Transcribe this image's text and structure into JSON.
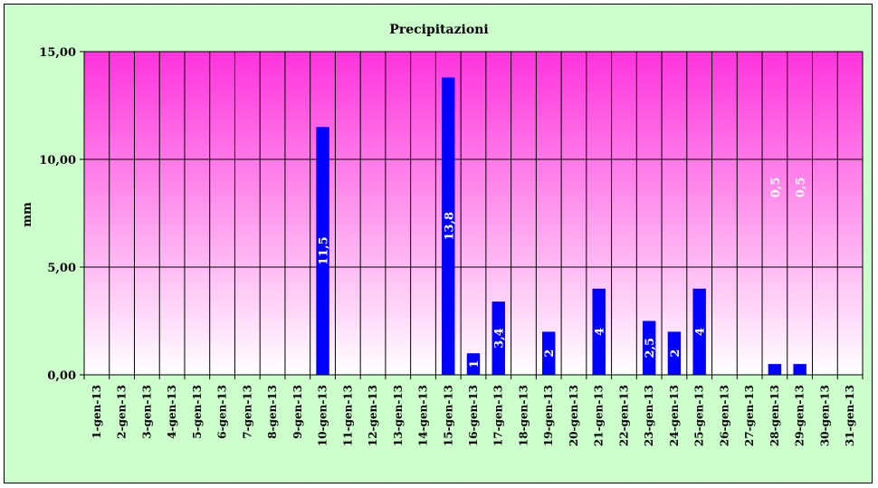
{
  "colors": {
    "background": "#ccffcc",
    "plot_top": "#ff33dd",
    "plot_bottom": "#ffffff",
    "bar": "#0000ff",
    "data_label": "#ffffff",
    "grid": "#000000"
  },
  "chart_data": {
    "type": "bar",
    "title": "Precipitazioni",
    "xlabel": "",
    "ylabel": "mm",
    "ylim": [
      0,
      15
    ],
    "yticks": [
      "0,00",
      "5,00",
      "10,00",
      "15,00"
    ],
    "ytick_values": [
      0,
      5,
      10,
      15
    ],
    "grid": true,
    "legend": "none",
    "categories": [
      "1-gen-13",
      "2-gen-13",
      "3-gen-13",
      "4-gen-13",
      "5-gen-13",
      "6-gen-13",
      "7-gen-13",
      "8-gen-13",
      "9-gen-13",
      "10-gen-13",
      "11-gen-13",
      "12-gen-13",
      "13-gen-13",
      "14-gen-13",
      "15-gen-13",
      "16-gen-13",
      "17-gen-13",
      "18-gen-13",
      "19-gen-13",
      "20-gen-13",
      "21-gen-13",
      "22-gen-13",
      "23-gen-13",
      "24-gen-13",
      "25-gen-13",
      "26-gen-13",
      "27-gen-13",
      "28-gen-13",
      "29-gen-13",
      "30-gen-13",
      "31-gen-13"
    ],
    "values": [
      0,
      0,
      0,
      0,
      0,
      0,
      0,
      0,
      0,
      11.5,
      0,
      0,
      0,
      0,
      13.8,
      1,
      3.4,
      0,
      2,
      0,
      4,
      0,
      2.5,
      2,
      4,
      0,
      0,
      0.5,
      0.5,
      0,
      0
    ],
    "data_labels": [
      "",
      "",
      "",
      "",
      "",
      "",
      "",
      "",
      "",
      "11,5",
      "",
      "",
      "",
      "",
      "13,8",
      "1",
      "3,4",
      "",
      "2",
      "",
      "4",
      "",
      "2,5",
      "2",
      "4",
      "",
      "",
      "0,5",
      "0,5",
      "",
      ""
    ]
  }
}
